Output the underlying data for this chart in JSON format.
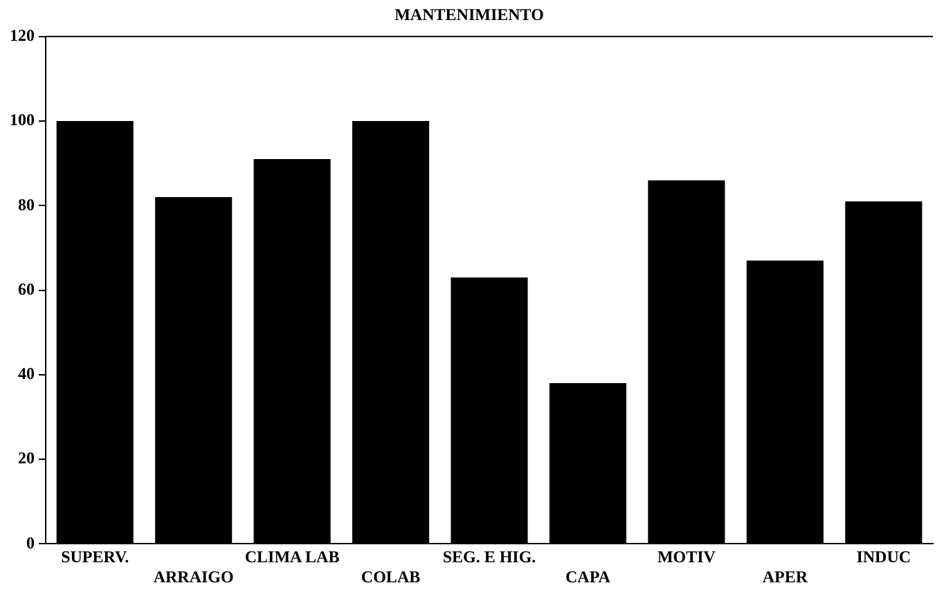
{
  "chart_data": {
    "type": "bar",
    "title": "MANTENIMIENTO",
    "categories": [
      "SUPERV.",
      "ARRAIGO",
      "CLIMA LAB",
      "COLAB",
      "SEG. E HIG.",
      "CAPA",
      "MOTIV",
      "APER",
      "INDUC"
    ],
    "values": [
      100,
      82,
      91,
      100,
      63,
      38,
      86,
      67,
      81
    ],
    "color": "#000000",
    "ylim": [
      0,
      120
    ],
    "yticks": [
      0,
      20,
      40,
      60,
      80,
      100,
      120
    ],
    "grid": false,
    "legend": false
  }
}
